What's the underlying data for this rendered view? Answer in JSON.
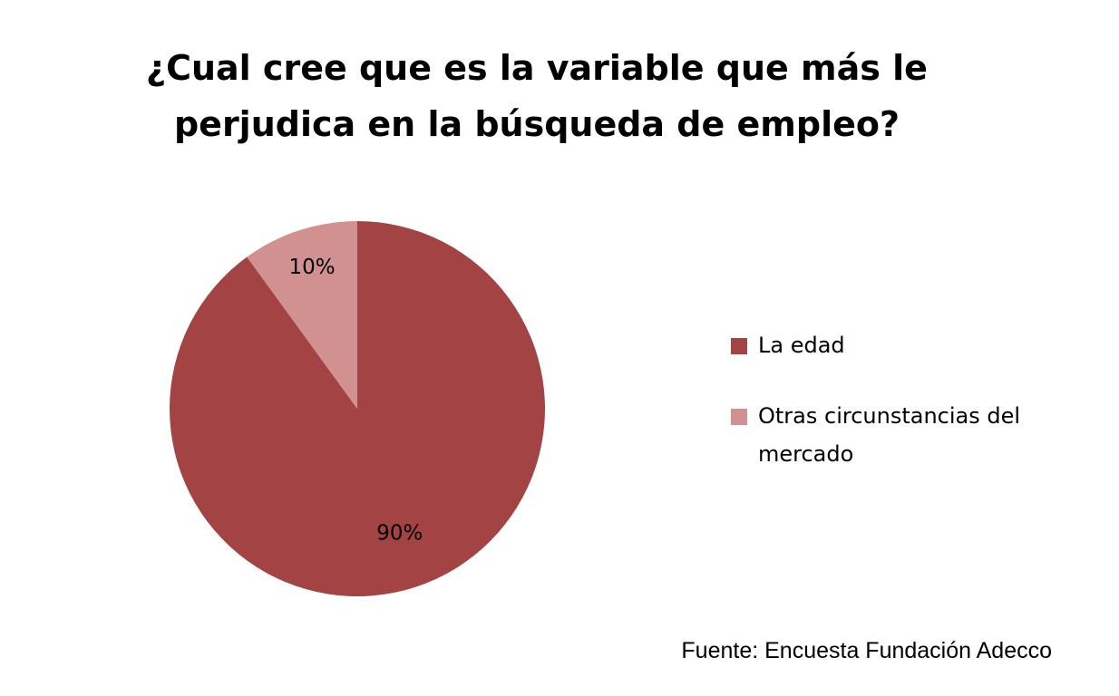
{
  "chart_data": {
    "type": "pie",
    "title_lines": [
      "¿Cual cree que es la variable que más le",
      "perjudica en la búsqueda de empleo?"
    ],
    "slices": [
      {
        "label": "La edad",
        "value": 90,
        "display": "90%",
        "color": "#A44343"
      },
      {
        "label": "Otras circunstancias del mercado",
        "value": 10,
        "display": "10%",
        "color": "#D29191"
      }
    ],
    "legend_position": "right",
    "source": "Fuente: Encuesta Fundación Adecco"
  }
}
